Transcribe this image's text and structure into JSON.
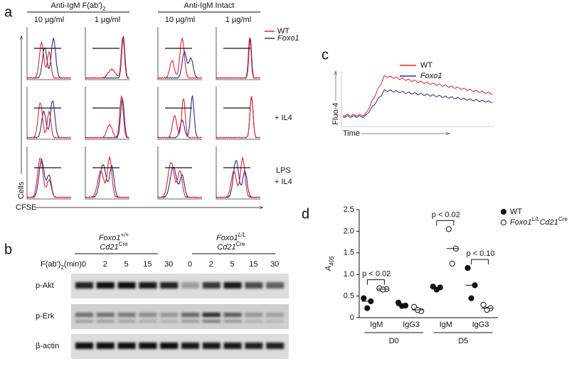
{
  "panel_labels": [
    "a",
    "b",
    "c",
    "d"
  ],
  "panel_a": {
    "headers": [
      {
        "text": "Anti-IgM F(ab')",
        "sub": "2"
      },
      {
        "text": "Anti-IgM Intact"
      }
    ],
    "doses": [
      "10 µg/ml",
      "1 µg/ml",
      "10 µg/ml",
      "1 µg/ml"
    ],
    "legend": [
      {
        "name": "WT",
        "color": "#e3252b"
      },
      {
        "name": "Foxo1",
        "color": "#2b2e8c"
      }
    ],
    "row2_label": "+ IL4",
    "row3_label": [
      "LPS",
      "+ IL4"
    ],
    "y_label": "Cells",
    "x_label": "CFSE"
  },
  "panel_b": {
    "groups": [
      {
        "gene": "Foxo1",
        "sup": "+/+",
        "line": "Cd21",
        "line_sup": "Cre"
      },
      {
        "gene": "Foxo1",
        "sup": "L/L",
        "line": "Cd21",
        "line_sup": "Cre"
      }
    ],
    "treatment": {
      "text": "F(ab')",
      "sub": "2",
      "unit": "(min):"
    },
    "times": [
      0,
      2,
      5,
      15,
      30,
      0,
      2,
      5,
      15,
      30
    ],
    "rows": [
      "p-Akt",
      "p-Erk",
      "β-actin"
    ]
  },
  "panel_c": {
    "legend": [
      {
        "name": "WT",
        "color": "#e3252b"
      },
      {
        "name": "Foxo1",
        "color": "#2b2e8c"
      }
    ],
    "y_label": "Fluo-4",
    "x_label": "Time"
  },
  "chart_data": {
    "type": "dot",
    "y_label": {
      "text": "A",
      "sub": "405"
    },
    "categories": [
      "IgM",
      "IgG3",
      "IgM",
      "IgG3"
    ],
    "groups": [
      "D0",
      "D5"
    ],
    "ylim": [
      0,
      2.5
    ],
    "yticks": [
      0,
      0.5,
      {
        "value": 1,
        "label": "1.0"
      },
      1.5,
      {
        "value": 2,
        "label": "2.0"
      },
      2.5
    ],
    "series": [
      {
        "name": [
          "WT"
        ],
        "marker": "filled",
        "color": "#111111",
        "values": [
          [
            0.45,
            0.38,
            0.22
          ],
          [
            0.35,
            0.28,
            0.27
          ],
          [
            0.72,
            0.7,
            0.65
          ],
          [
            1.15,
            0.75,
            0.45
          ]
        ]
      },
      {
        "name": [
          "Foxo1",
          "L/L",
          "Cd21",
          "Cre"
        ],
        "marker": "open",
        "color": "#111111",
        "values": [
          [
            0.68,
            0.66,
            0.65
          ],
          [
            0.25,
            0.15,
            0.18
          ],
          [
            2.05,
            1.6,
            1.25
          ],
          [
            0.3,
            0.22,
            0.18
          ]
        ]
      }
    ],
    "annotations": [
      {
        "text": "p < 0.02",
        "category": 0
      },
      {
        "text": "p < 0.02",
        "category": 2
      },
      {
        "text": "p < 0.10",
        "category": 3
      }
    ]
  }
}
